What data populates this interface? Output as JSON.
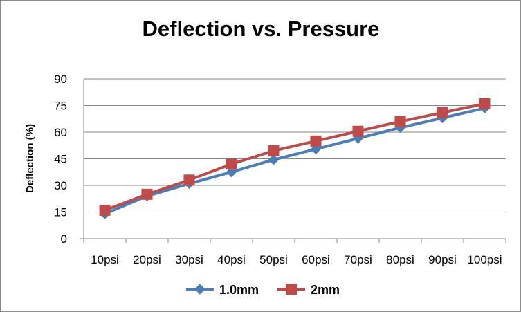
{
  "chart_data": {
    "type": "line",
    "title": "Deflection vs. Pressure",
    "xlabel": "",
    "ylabel": "Deflection (%)",
    "categories": [
      "10psi",
      "20psi",
      "30psi",
      "40psi",
      "50psi",
      "60psi",
      "70psi",
      "80psi",
      "90psi",
      "100psi"
    ],
    "ylim": [
      0,
      90
    ],
    "yticks": [
      0,
      15,
      30,
      45,
      60,
      75,
      90
    ],
    "grid": true,
    "legend": "bottom",
    "series": [
      {
        "name": "1.0mm",
        "color": "#4a7ebb",
        "marker": "diamond",
        "values": [
          14,
          24,
          31,
          37.5,
          44.5,
          50.5,
          56.5,
          62.5,
          68,
          73.5
        ]
      },
      {
        "name": "2mm",
        "color": "#be4b48",
        "marker": "square",
        "values": [
          16,
          25,
          33,
          42,
          49.5,
          55,
          60.5,
          66,
          71,
          76
        ]
      }
    ]
  }
}
